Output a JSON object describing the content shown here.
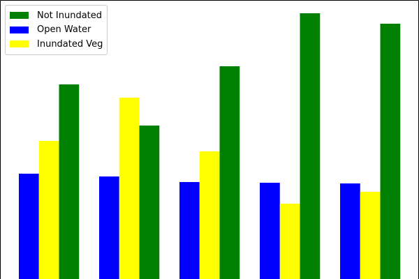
{
  "chart_data": {
    "type": "bar",
    "categories": [
      "",
      "",
      "",
      "",
      ""
    ],
    "series": [
      {
        "name": "Open Water",
        "color": "#0000ff",
        "values": [
          151,
          147,
          139,
          138,
          137
        ]
      },
      {
        "name": "Inundated Veg",
        "color": "#ffff00",
        "values": [
          198,
          260,
          183,
          108,
          125
        ]
      },
      {
        "name": "Not Inundated",
        "color": "#008000",
        "values": [
          279,
          220,
          305,
          381,
          366
        ]
      }
    ],
    "legend_order": [
      2,
      0,
      1
    ],
    "title": "",
    "xlabel": "",
    "ylabel": "",
    "ylim": [
      0,
      400
    ],
    "grid": false,
    "legend_position": "top-left",
    "axes_frame": "top-left-right"
  }
}
